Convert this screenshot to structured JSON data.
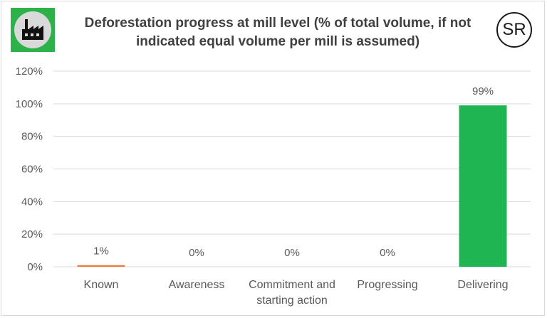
{
  "header": {
    "title_line1": "Deforestation progress at mill level (% of total volume, if not",
    "title_line2": "indicated equal volume per mill is assumed)",
    "logo_icon": "factory-icon",
    "badge_text": "SR"
  },
  "colors": {
    "logo_green": "#2db24a",
    "known_bar": "#f07c3a",
    "delivering_bar": "#1fb552",
    "grid": "#d9d9d9",
    "text": "#595959"
  },
  "chart_data": {
    "type": "bar",
    "categories": [
      [
        "Known"
      ],
      [
        "Awareness"
      ],
      [
        "Commitment and",
        "starting action"
      ],
      [
        "Progressing"
      ],
      [
        "Delivering"
      ]
    ],
    "values": [
      1,
      0,
      0,
      0,
      99
    ],
    "data_labels": [
      "1%",
      "0%",
      "0%",
      "0%",
      "99%"
    ],
    "bar_colors": [
      "#f07c3a",
      "#1fb552",
      "#1fb552",
      "#1fb552",
      "#1fb552"
    ],
    "yticks": [
      "0%",
      "20%",
      "40%",
      "60%",
      "80%",
      "100%",
      "120%"
    ],
    "ylim": [
      0,
      120
    ],
    "ytick_step": 20,
    "grid": true,
    "legend": false,
    "xlabel": "",
    "ylabel": ""
  }
}
